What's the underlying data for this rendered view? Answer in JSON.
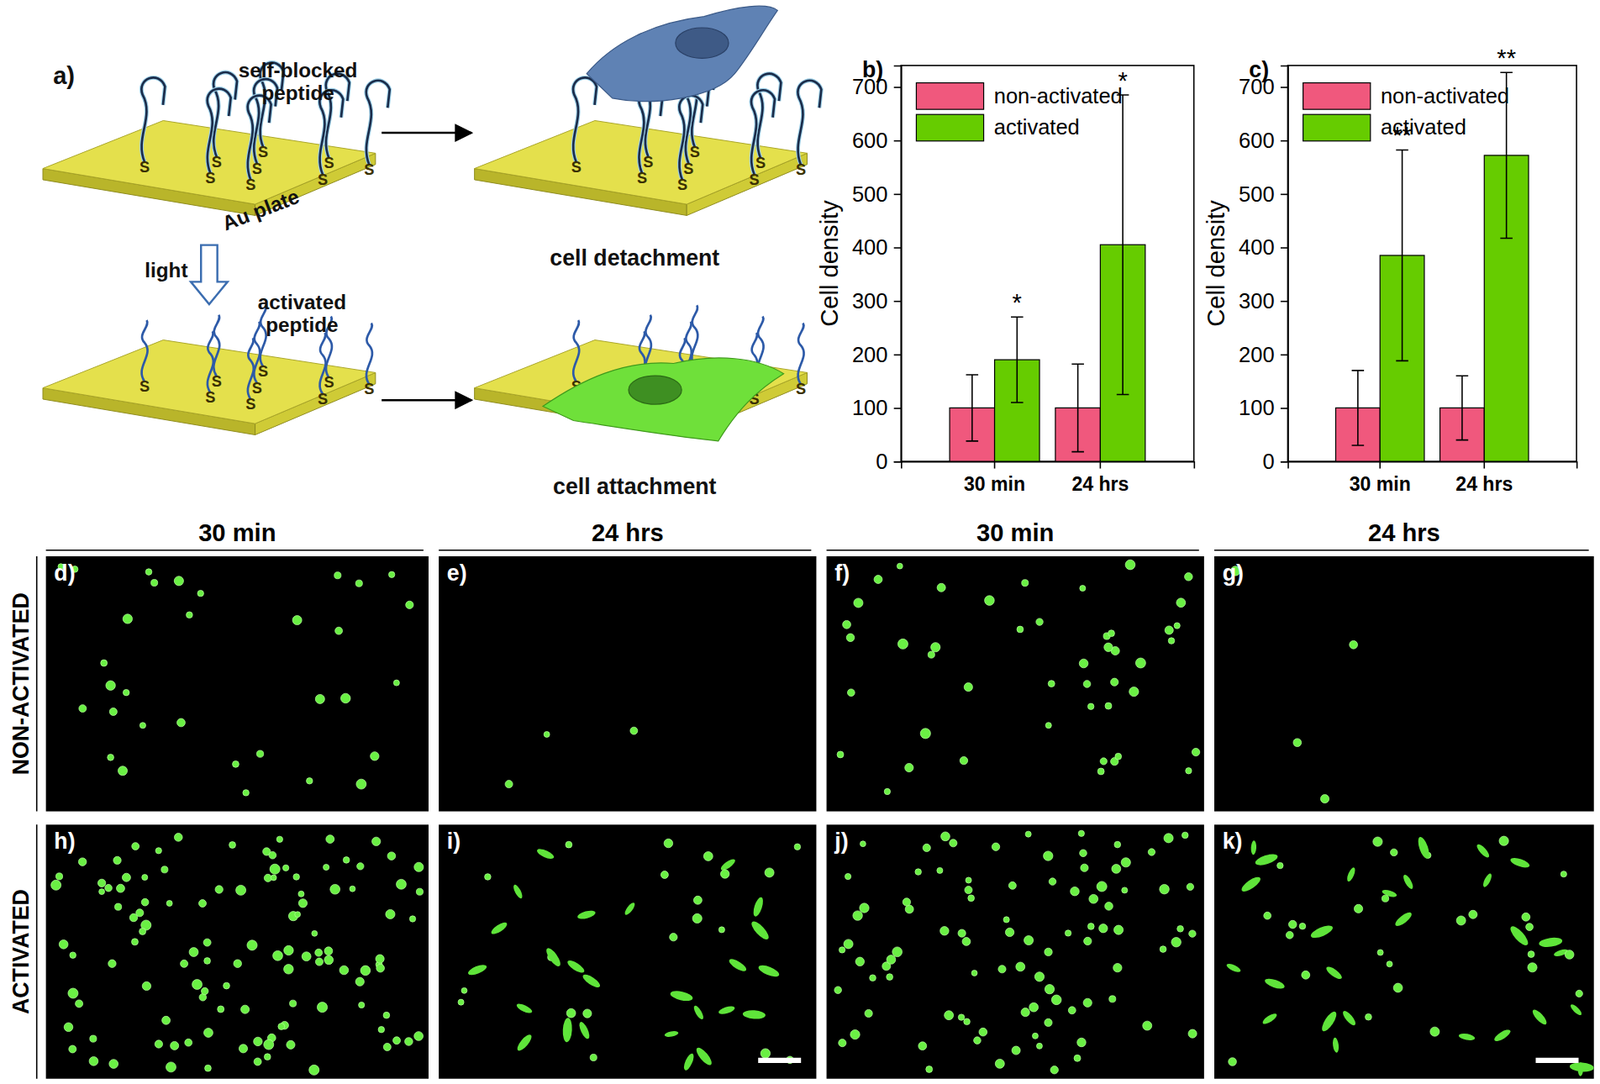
{
  "schematic": {
    "label": "a)",
    "blocked_label": [
      "self-blocked",
      "peptide"
    ],
    "plate_label": "Au plate",
    "light_label": "light",
    "activated_label": [
      "activated",
      "peptide"
    ],
    "detachment_label": "cell detachment",
    "attachment_label": "cell attachment",
    "anchor_label": "S"
  },
  "chart_data": [
    {
      "type": "bar",
      "title": "b)",
      "categories": [
        "30 min",
        "24 hrs"
      ],
      "ylabel": "Cell density",
      "series": [
        {
          "name": "non-activated",
          "color": "#f0587d",
          "values": [
            100,
            100
          ],
          "errors": [
            62,
            82
          ]
        },
        {
          "name": "activated",
          "color": "#66cc00",
          "values": [
            190,
            405
          ],
          "errors": [
            80,
            280
          ]
        }
      ],
      "annotations": [
        "*",
        "*"
      ],
      "ylim": [
        0,
        740
      ],
      "yticks": [
        0,
        100,
        200,
        300,
        400,
        500,
        600,
        700
      ],
      "legend": "upper left",
      "grid": false
    },
    {
      "type": "bar",
      "title": "c)",
      "categories": [
        "30 min",
        "24 hrs"
      ],
      "ylabel": "Cell density",
      "series": [
        {
          "name": "non-activated",
          "color": "#f0587d",
          "values": [
            100,
            100
          ],
          "errors": [
            70,
            60
          ]
        },
        {
          "name": "activated",
          "color": "#66cc00",
          "values": [
            385,
            572
          ],
          "errors": [
            197,
            155
          ]
        }
      ],
      "annotations": [
        "**",
        "**"
      ],
      "ylim": [
        0,
        740
      ],
      "yticks": [
        0,
        100,
        200,
        300,
        400,
        500,
        600,
        700
      ],
      "legend": "upper left",
      "grid": false
    }
  ],
  "micrographs": {
    "column_headers": [
      "30 min",
      "24 hrs",
      "30 min",
      "24 hrs"
    ],
    "row_labels": [
      "NON-ACTIVATED",
      "ACTIVATED"
    ],
    "panels": [
      [
        "d)",
        "e)",
        "f)",
        "g)"
      ],
      [
        "h)",
        "i)",
        "j)",
        "k)"
      ]
    ]
  }
}
